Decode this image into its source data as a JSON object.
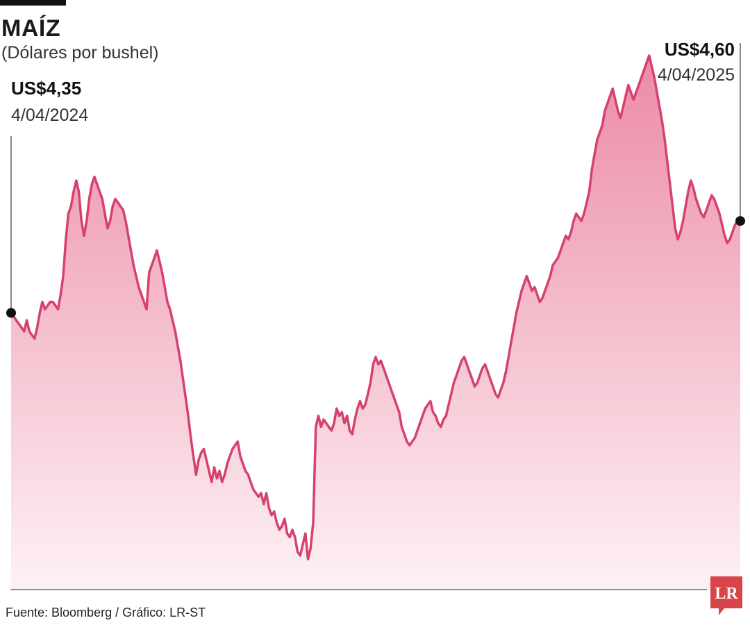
{
  "header": {
    "title": "MAÍZ",
    "subtitle": "(Dólares por bushel)"
  },
  "annotations": {
    "start": {
      "value": "US$4,35",
      "date": "4/04/2024"
    },
    "end": {
      "value": "US$4,60",
      "date": "4/04/2025"
    }
  },
  "footer": {
    "source": "Fuente: Bloomberg / Gráfico: LR-ST",
    "logo_text": "LR"
  },
  "colors": {
    "line": "#d6416e",
    "fill_top": "#ec8ba6",
    "fill_bottom": "#fdf1f4",
    "logo": "#d9434a"
  },
  "chart_data": {
    "type": "area",
    "title": "MAÍZ",
    "subtitle": "(Dólares por bushel)",
    "x_start": "4/04/2024",
    "x_end": "4/04/2025",
    "ylim": [
      3.65,
      5.1
    ],
    "grid": false,
    "series": [
      {
        "values": [
          4.35,
          4.34,
          4.33,
          4.32,
          4.31,
          4.3,
          4.33,
          4.3,
          4.29,
          4.28,
          4.31,
          4.35,
          4.38,
          4.36,
          4.37,
          4.38,
          4.38,
          4.37,
          4.36,
          4.4,
          4.45,
          4.55,
          4.62,
          4.64,
          4.68,
          4.71,
          4.68,
          4.6,
          4.56,
          4.6,
          4.66,
          4.7,
          4.72,
          4.7,
          4.68,
          4.66,
          4.62,
          4.58,
          4.6,
          4.64,
          4.66,
          4.65,
          4.64,
          4.63,
          4.6,
          4.56,
          4.52,
          4.48,
          4.45,
          4.42,
          4.4,
          4.38,
          4.36,
          4.46,
          4.48,
          4.5,
          4.52,
          4.49,
          4.46,
          4.42,
          4.38,
          4.36,
          4.33,
          4.3,
          4.26,
          4.22,
          4.17,
          4.12,
          4.07,
          4.01,
          3.96,
          3.91,
          3.95,
          3.97,
          3.98,
          3.95,
          3.92,
          3.89,
          3.93,
          3.9,
          3.92,
          3.89,
          3.91,
          3.94,
          3.96,
          3.98,
          3.99,
          4.0,
          3.96,
          3.94,
          3.92,
          3.91,
          3.89,
          3.87,
          3.86,
          3.85,
          3.86,
          3.83,
          3.86,
          3.82,
          3.8,
          3.81,
          3.78,
          3.76,
          3.77,
          3.79,
          3.75,
          3.74,
          3.76,
          3.74,
          3.7,
          3.69,
          3.72,
          3.75,
          3.68,
          3.71,
          3.78,
          4.04,
          4.07,
          4.04,
          4.06,
          4.05,
          4.04,
          4.03,
          4.05,
          4.09,
          4.07,
          4.08,
          4.05,
          4.07,
          4.03,
          4.02,
          4.06,
          4.09,
          4.11,
          4.09,
          4.1,
          4.13,
          4.16,
          4.21,
          4.23,
          4.21,
          4.22,
          4.2,
          4.18,
          4.16,
          4.14,
          4.12,
          4.1,
          4.08,
          4.04,
          4.02,
          4.0,
          3.99,
          4.0,
          4.01,
          4.03,
          4.05,
          4.07,
          4.09,
          4.1,
          4.11,
          4.08,
          4.07,
          4.05,
          4.04,
          4.06,
          4.07,
          4.1,
          4.13,
          4.16,
          4.18,
          4.2,
          4.22,
          4.23,
          4.21,
          4.19,
          4.17,
          4.15,
          4.16,
          4.18,
          4.2,
          4.21,
          4.19,
          4.17,
          4.15,
          4.13,
          4.12,
          4.14,
          4.16,
          4.19,
          4.23,
          4.27,
          4.31,
          4.35,
          4.38,
          4.41,
          4.43,
          4.45,
          4.43,
          4.41,
          4.42,
          4.4,
          4.38,
          4.39,
          4.41,
          4.43,
          4.45,
          4.48,
          4.49,
          4.5,
          4.52,
          4.54,
          4.56,
          4.55,
          4.57,
          4.6,
          4.62,
          4.61,
          4.6,
          4.62,
          4.65,
          4.68,
          4.74,
          4.78,
          4.82,
          4.84,
          4.86,
          4.9,
          4.92,
          4.94,
          4.96,
          4.93,
          4.9,
          4.88,
          4.91,
          4.94,
          4.97,
          4.95,
          4.93,
          4.95,
          4.97,
          4.99,
          5.01,
          5.03,
          5.05,
          5.02,
          4.99,
          4.95,
          4.91,
          4.87,
          4.82,
          4.76,
          4.7,
          4.64,
          4.58,
          4.55,
          4.57,
          4.6,
          4.64,
          4.68,
          4.71,
          4.69,
          4.66,
          4.64,
          4.62,
          4.61,
          4.63,
          4.65,
          4.67,
          4.66,
          4.64,
          4.62,
          4.59,
          4.56,
          4.54,
          4.55,
          4.57,
          4.59,
          4.6,
          4.6
        ]
      }
    ],
    "annotations": [
      {
        "label": "US$4,35",
        "date": "4/04/2024",
        "value": 4.35
      },
      {
        "label": "US$4,60",
        "date": "4/04/2025",
        "value": 4.6
      }
    ]
  }
}
